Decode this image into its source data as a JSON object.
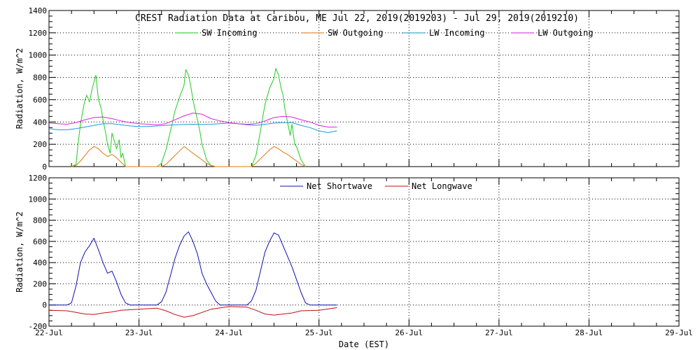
{
  "chart_data": [
    {
      "type": "line",
      "title": "CREST Radiation Data at Caribou, ME   Jul 22, 2019(2019203) - Jul 29, 2019(2019210)",
      "ylabel": "Radiation, W/m^2",
      "xlabel": "",
      "xlim": [
        22,
        29
      ],
      "ylim": [
        0,
        1400
      ],
      "yticks": [
        0,
        200,
        400,
        600,
        800,
        1000,
        1200,
        1400
      ],
      "grid": true,
      "legend_position": "top",
      "series": [
        {
          "name": "SW Incoming",
          "color": "#22cc22",
          "x": [
            22.25,
            22.3,
            22.32,
            22.35,
            22.38,
            22.4,
            22.42,
            22.45,
            22.48,
            22.5,
            22.52,
            22.55,
            22.58,
            22.6,
            22.63,
            22.65,
            22.68,
            22.7,
            22.73,
            22.75,
            22.78,
            22.8,
            22.82,
            22.85,
            23.2,
            23.25,
            23.3,
            23.35,
            23.4,
            23.45,
            23.5,
            23.52,
            23.55,
            23.58,
            23.6,
            23.62,
            23.65,
            23.68,
            23.7,
            23.73,
            23.75,
            23.8,
            23.85,
            24.25,
            24.3,
            24.35,
            24.4,
            24.45,
            24.5,
            24.52,
            24.55,
            24.58,
            24.6,
            24.62,
            24.65,
            24.68,
            24.7,
            24.73,
            24.75,
            24.8,
            24.85
          ],
          "y": [
            0,
            20,
            180,
            380,
            520,
            600,
            640,
            580,
            700,
            760,
            820,
            600,
            520,
            420,
            300,
            200,
            120,
            300,
            220,
            160,
            240,
            80,
            120,
            0,
            0,
            30,
            150,
            320,
            500,
            620,
            730,
            870,
            820,
            700,
            600,
            520,
            420,
            300,
            200,
            120,
            60,
            10,
            0,
            0,
            100,
            320,
            560,
            700,
            790,
            880,
            820,
            700,
            640,
            520,
            400,
            280,
            380,
            200,
            180,
            60,
            0
          ]
        },
        {
          "name": "SW Outgoing",
          "color": "#e07a10",
          "x": [
            22.25,
            22.3,
            22.35,
            22.4,
            22.45,
            22.5,
            22.55,
            22.6,
            22.65,
            22.7,
            22.75,
            22.8,
            22.85,
            23.25,
            23.3,
            23.35,
            23.4,
            23.45,
            23.5,
            23.55,
            23.6,
            23.65,
            23.7,
            23.75,
            23.8,
            23.85,
            24.25,
            24.3,
            24.35,
            24.4,
            24.45,
            24.5,
            24.55,
            24.6,
            24.65,
            24.7,
            24.75,
            24.8,
            24.85
          ],
          "y": [
            0,
            10,
            50,
            100,
            150,
            180,
            160,
            120,
            90,
            110,
            80,
            40,
            0,
            0,
            20,
            60,
            100,
            140,
            180,
            150,
            120,
            90,
            60,
            30,
            10,
            0,
            0,
            30,
            70,
            110,
            150,
            180,
            160,
            130,
            110,
            80,
            50,
            20,
            0
          ]
        },
        {
          "name": "LW Incoming",
          "color": "#1a9ad6",
          "x": [
            22,
            22.1,
            22.2,
            22.3,
            22.4,
            22.5,
            22.6,
            22.7,
            22.8,
            22.9,
            23,
            23.1,
            23.2,
            23.3,
            23.4,
            23.5,
            23.6,
            23.7,
            23.8,
            23.9,
            24,
            24.1,
            24.2,
            24.3,
            24.4,
            24.5,
            24.6,
            24.7,
            24.8,
            24.9,
            25,
            25.1,
            25.2
          ],
          "y": [
            340,
            330,
            330,
            340,
            355,
            370,
            385,
            385,
            375,
            365,
            360,
            360,
            365,
            370,
            375,
            378,
            380,
            378,
            380,
            385,
            390,
            385,
            375,
            370,
            380,
            390,
            395,
            395,
            370,
            350,
            320,
            305,
            320
          ]
        },
        {
          "name": "LW Outgoing",
          "color": "#e020e0",
          "x": [
            22,
            22.1,
            22.2,
            22.3,
            22.4,
            22.5,
            22.6,
            22.7,
            22.8,
            22.9,
            23,
            23.1,
            23.2,
            23.3,
            23.4,
            23.5,
            23.6,
            23.7,
            23.8,
            23.9,
            24,
            24.1,
            24.2,
            24.3,
            24.4,
            24.5,
            24.6,
            24.7,
            24.8,
            24.9,
            25,
            25.1,
            25.2
          ],
          "y": [
            390,
            385,
            380,
            395,
            420,
            440,
            445,
            430,
            410,
            395,
            385,
            380,
            375,
            385,
            420,
            455,
            480,
            470,
            430,
            410,
            395,
            385,
            380,
            385,
            410,
            440,
            450,
            445,
            420,
            400,
            370,
            355,
            355
          ]
        }
      ]
    },
    {
      "type": "line",
      "title": "",
      "ylabel": "Radiation, W/m^2",
      "xlabel": "Date (EST)",
      "xlim": [
        22,
        29
      ],
      "ylim": [
        -200,
        1200
      ],
      "yticks": [
        -200,
        0,
        200,
        400,
        600,
        800,
        1000,
        1200
      ],
      "xticks": [
        22,
        23,
        24,
        25,
        26,
        27,
        28,
        29
      ],
      "xtick_labels": [
        "22-Jul",
        "23-Jul",
        "24-Jul",
        "25-Jul",
        "26-Jul",
        "27-Jul",
        "28-Jul",
        "29-Jul"
      ],
      "grid": true,
      "legend_position": "top",
      "series": [
        {
          "name": "Net Shortwave",
          "color": "#1010b0",
          "x": [
            22,
            22.2,
            22.25,
            22.3,
            22.35,
            22.4,
            22.45,
            22.5,
            22.55,
            22.6,
            22.65,
            22.7,
            22.75,
            22.8,
            22.85,
            22.9,
            23,
            23.2,
            23.25,
            23.3,
            23.35,
            23.4,
            23.45,
            23.5,
            23.55,
            23.6,
            23.65,
            23.7,
            23.75,
            23.8,
            23.85,
            23.9,
            24,
            24.2,
            24.25,
            24.3,
            24.35,
            24.4,
            24.45,
            24.5,
            24.55,
            24.6,
            24.65,
            24.7,
            24.75,
            24.8,
            24.85,
            24.9,
            25,
            25.2
          ],
          "y": [
            0,
            0,
            20,
            180,
            400,
            500,
            560,
            630,
            520,
            400,
            300,
            320,
            220,
            100,
            20,
            0,
            0,
            0,
            30,
            120,
            280,
            440,
            560,
            650,
            690,
            600,
            480,
            300,
            200,
            120,
            40,
            0,
            0,
            0,
            40,
            140,
            320,
            500,
            600,
            680,
            660,
            560,
            460,
            360,
            240,
            120,
            20,
            0,
            0,
            0
          ]
        },
        {
          "name": "Net Longwave",
          "color": "#c01010",
          "x": [
            22,
            22.2,
            22.3,
            22.4,
            22.5,
            22.6,
            22.7,
            22.8,
            23,
            23.2,
            23.3,
            23.4,
            23.5,
            23.6,
            23.7,
            23.8,
            24,
            24.2,
            24.3,
            24.4,
            24.5,
            24.6,
            24.7,
            24.8,
            25,
            25.2
          ],
          "y": [
            -50,
            -55,
            -70,
            -85,
            -90,
            -75,
            -65,
            -50,
            -40,
            -30,
            -55,
            -90,
            -115,
            -100,
            -70,
            -40,
            -15,
            -20,
            -50,
            -85,
            -95,
            -85,
            -75,
            -55,
            -50,
            -25
          ]
        }
      ]
    }
  ]
}
